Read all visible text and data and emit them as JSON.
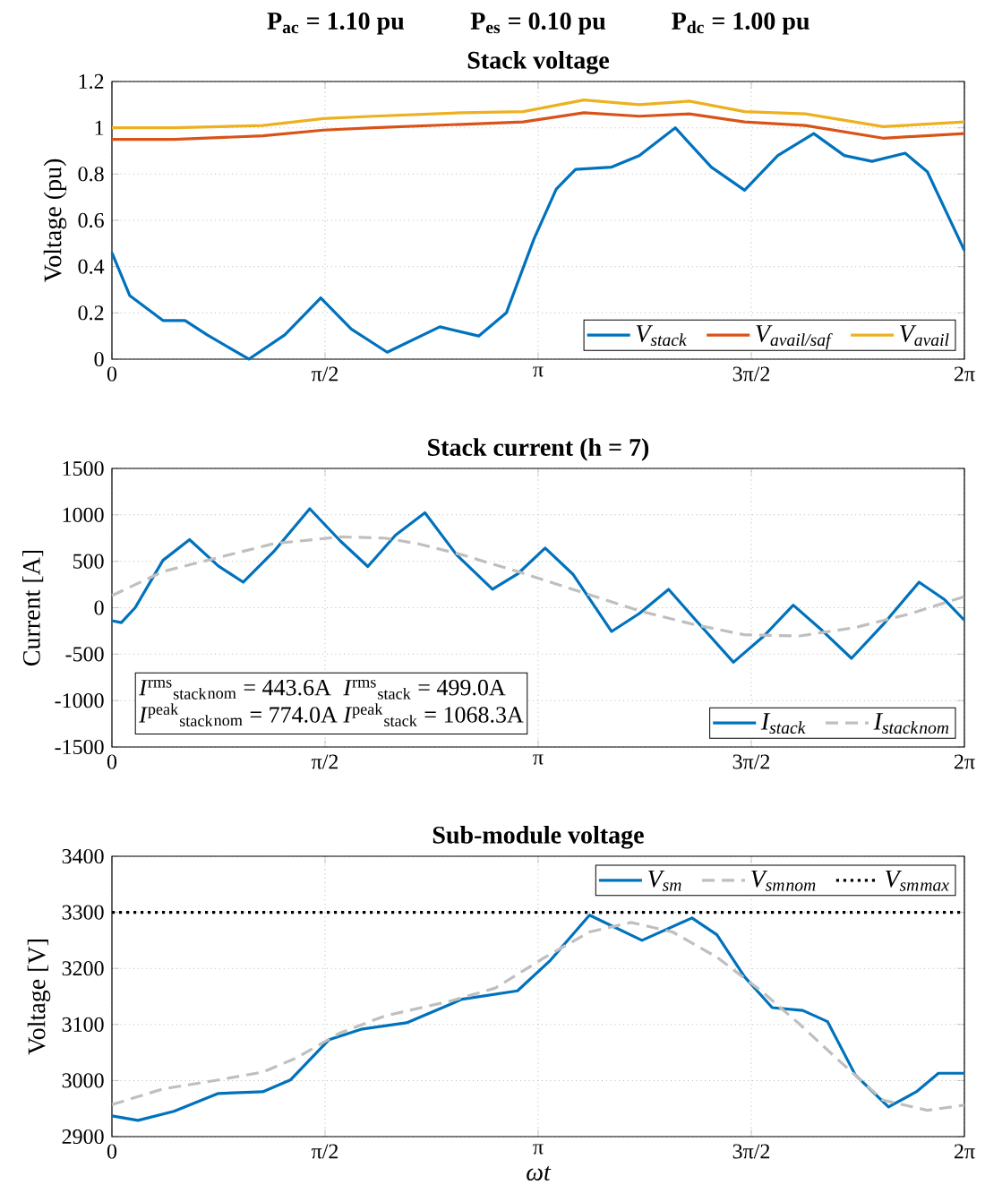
{
  "chart_data": [
    {
      "type": "line",
      "title": "Stack voltage",
      "ylabel": "Voltage (pu)",
      "annotations": [
        "P$_{ac}$ = 1.10 pu",
        "P$_{es}$ = 0.10 pu",
        "P$_{dc}$ = 1.00 pu"
      ],
      "xlim": [
        0,
        6.2832
      ],
      "xticks": [
        0,
        {
          "value": 1.5708,
          "label": "π/2"
        },
        {
          "value": 3.1416,
          "label": "π"
        },
        {
          "value": 4.7124,
          "label": "3π/2"
        },
        {
          "value": 6.2832,
          "label": "2π"
        }
      ],
      "ylim": [
        0,
        1.2
      ],
      "yticks": [
        0,
        0.2,
        0.4,
        0.6,
        0.8,
        1,
        1.2
      ],
      "grid": true,
      "legend": "bottom right",
      "series": [
        {
          "name": "V$_{stack}$",
          "color": "#0072bd",
          "x": [
            0,
            0.131,
            0.376,
            0.539,
            0.702,
            1.009,
            1.274,
            1.539,
            1.764,
            2.029,
            2.417,
            2.703,
            2.907,
            3.111,
            3.275,
            3.417,
            3.683,
            3.887,
            4.152,
            4.418,
            4.663,
            4.908,
            5.173,
            5.398,
            5.602,
            5.847,
            6.01,
            6.283
          ],
          "values": [
            0.46,
            0.275,
            0.167,
            0.167,
            0.105,
            0.0,
            0.105,
            0.265,
            0.13,
            0.03,
            0.14,
            0.1,
            0.2,
            0.52,
            0.735,
            0.82,
            0.83,
            0.88,
            1.0,
            0.83,
            0.73,
            0.88,
            0.975,
            0.88,
            0.855,
            0.89,
            0.81,
            0.47
          ]
        },
        {
          "name": "V$_{avail/saf}$",
          "color": "#d95319",
          "x": [
            0,
            0.457,
            1.111,
            1.56,
            1.927,
            2.58,
            3.03,
            3.479,
            3.887,
            4.255,
            4.663,
            5.112,
            5.684,
            6.283
          ],
          "values": [
            0.95,
            0.95,
            0.965,
            0.99,
            1.0,
            1.015,
            1.025,
            1.065,
            1.05,
            1.06,
            1.025,
            1.01,
            0.955,
            0.975
          ]
        },
        {
          "name": "V$_{avail}$",
          "color": "#edb120",
          "x": [
            0,
            0.457,
            1.111,
            1.56,
            1.927,
            2.58,
            3.03,
            3.479,
            3.887,
            4.255,
            4.663,
            5.112,
            5.684,
            6.283
          ],
          "values": [
            1.0,
            1.0,
            1.01,
            1.04,
            1.05,
            1.065,
            1.07,
            1.12,
            1.1,
            1.115,
            1.07,
            1.06,
            1.005,
            1.025
          ]
        }
      ]
    },
    {
      "type": "line",
      "title": "Stack current (h = 7)",
      "ylabel": "Current [A]",
      "annotations": [
        "*I*$^{rms}$$_{stack}$$_{nom}$ = 443.6A",
        "*I*$^{rms}$$_{stack}$ = 499.0A",
        "*I*$^{peak}$$_{stack}$$_{nom}$ = 774.0A",
        "*I*$^{peak}$$_{stack}$ = 1068.3A"
      ],
      "xlim": [
        0,
        6.2832
      ],
      "xticks": [
        0,
        {
          "value": 1.5708,
          "label": "π/2"
        },
        {
          "value": 3.1416,
          "label": "π"
        },
        {
          "value": 4.7124,
          "label": "3π/2"
        },
        {
          "value": 6.2832,
          "label": "2π"
        }
      ],
      "ylim": [
        -1500,
        1500
      ],
      "yticks": [
        -1500,
        -1000,
        -500,
        0,
        500,
        1000,
        1500
      ],
      "grid": true,
      "legend": "bottom right",
      "series": [
        {
          "name": "I$_{stack}$",
          "color": "#0072bd",
          "x": [
            0,
            0.069,
            0.171,
            0.376,
            0.572,
            0.784,
            0.968,
            1.192,
            1.458,
            1.682,
            1.886,
            2.09,
            2.307,
            2.54,
            2.805,
            2.989,
            3.193,
            3.397,
            3.683,
            3.887,
            4.103,
            4.295,
            4.581,
            4.806,
            5.022,
            5.234,
            5.451,
            5.683,
            5.949,
            6.133,
            6.283
          ],
          "values": [
            -140,
            -160,
            0,
            510,
            733,
            450,
            275,
            603,
            1066,
            721,
            444,
            781,
            1023,
            570,
            198,
            362,
            642,
            362,
            -256,
            -63,
            198,
            -121,
            -587,
            -304,
            28,
            -244,
            -545,
            -183,
            275,
            92,
            -135
          ]
        },
        {
          "name": "I$_{stack}$$_{nom}$",
          "color": "#bfbfbf",
          "line_style": "dashed",
          "x": [
            0,
            0.376,
            0.784,
            1.192,
            1.682,
            2.009,
            2.254,
            2.58,
            2.989,
            3.438,
            3.887,
            4.295,
            4.663,
            5.071,
            5.479,
            5.888,
            6.283
          ],
          "values": [
            130,
            390,
            540,
            690,
            763,
            750,
            690,
            570,
            390,
            178,
            -34,
            -183,
            -292,
            -304,
            -213,
            -63,
            120
          ]
        }
      ]
    },
    {
      "type": "line",
      "title": "Sub-module voltage",
      "ylabel": "Voltage [V]",
      "xlabel": "ωt",
      "xlim": [
        0,
        6.2832
      ],
      "xticks": [
        0,
        {
          "value": 1.5708,
          "label": "π/2"
        },
        {
          "value": 3.1416,
          "label": "π"
        },
        {
          "value": 4.7124,
          "label": "3π/2"
        },
        {
          "value": 6.2832,
          "label": "2π"
        }
      ],
      "ylim": [
        2900,
        3400
      ],
      "yticks": [
        2900,
        3000,
        3100,
        3200,
        3300,
        3400
      ],
      "grid": true,
      "legend": "top right",
      "series": [
        {
          "name": "V$_{sm}$",
          "color": "#0072bd",
          "x": [
            0,
            0.192,
            0.457,
            0.784,
            1.111,
            1.315,
            1.601,
            1.846,
            2.172,
            2.58,
            2.989,
            3.234,
            3.52,
            3.907,
            4.275,
            4.459,
            4.663,
            4.867,
            5.092,
            5.275,
            5.479,
            5.724,
            5.929,
            6.092,
            6.283
          ],
          "values": [
            2937,
            2929,
            2945,
            2977,
            2980,
            3001,
            3073,
            3092,
            3103,
            3145,
            3160,
            3215,
            3295,
            3250,
            3290,
            3260,
            3185,
            3130,
            3125,
            3105,
            3010,
            2953,
            2980,
            3013,
            3013
          ]
        },
        {
          "name": "V$_{sm}$$_{nom}$",
          "color": "#bfbfbf",
          "line_style": "dashed",
          "x": [
            0,
            0.376,
            0.784,
            1.111,
            1.356,
            1.682,
            2.009,
            2.499,
            2.826,
            3.193,
            3.52,
            3.826,
            4.132,
            4.459,
            4.785,
            5.071,
            5.357,
            5.684,
            6.01,
            6.283
          ],
          "values": [
            2957,
            2985,
            3001,
            3015,
            3040,
            3085,
            3115,
            3142,
            3165,
            3220,
            3265,
            3282,
            3265,
            3220,
            3160,
            3100,
            3036,
            2965,
            2947,
            2956
          ]
        },
        {
          "name": "V$_{sm}$$_{max}$",
          "color": "#000000",
          "line_style": "dotted",
          "x": [
            0,
            6.2832
          ],
          "values": [
            3300,
            3300
          ]
        }
      ]
    }
  ]
}
